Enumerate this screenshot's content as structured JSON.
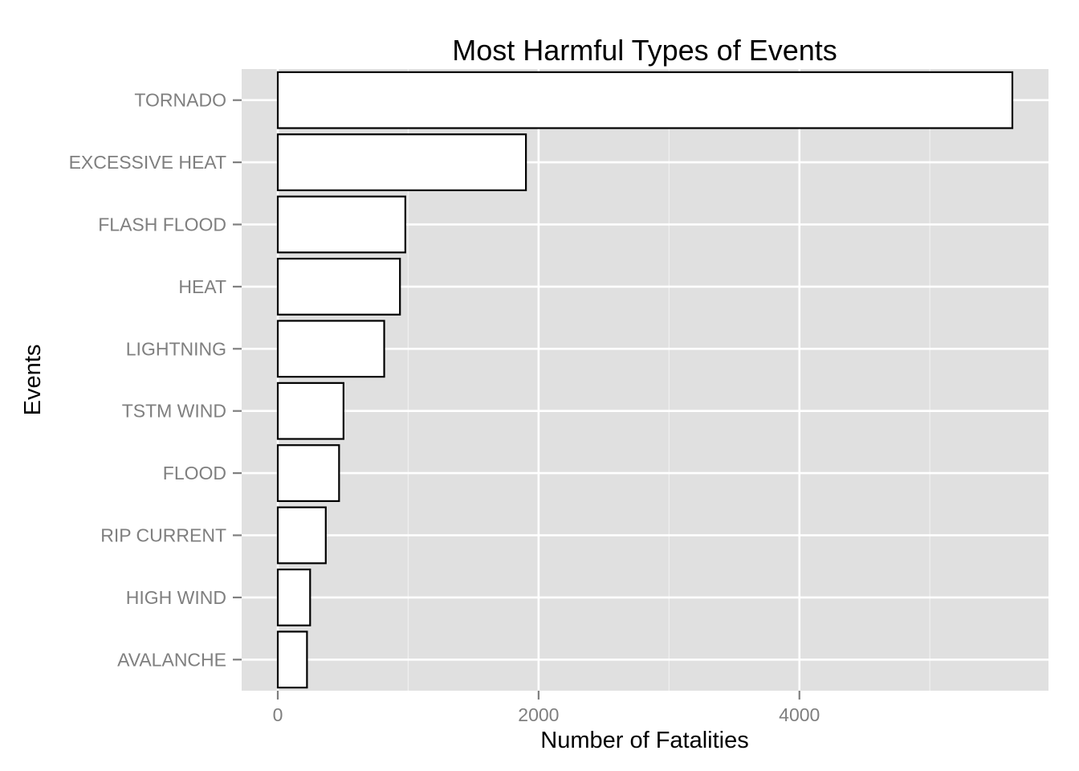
{
  "chart_data": {
    "type": "bar",
    "orientation": "horizontal",
    "title": "Most Harmful Types of Events",
    "xlabel": "Number of Fatalities",
    "ylabel": "Events",
    "categories": [
      "TORNADO",
      "EXCESSIVE HEAT",
      "FLASH FLOOD",
      "HEAT",
      "LIGHTNING",
      "TSTM WIND",
      "FLOOD",
      "RIP CURRENT",
      "HIGH WIND",
      "AVALANCHE"
    ],
    "values": [
      5633,
      1903,
      978,
      937,
      816,
      504,
      470,
      368,
      248,
      224
    ],
    "x_ticks": [
      "0",
      "2000",
      "4000"
    ],
    "xlim": [
      -277,
      5910
    ],
    "grid": true,
    "legend": "none",
    "colors": {
      "panel_background": "#e0e0e0",
      "grid_major": "#ffffff",
      "grid_minor": "#efefef",
      "bar_fill": "#ffffff",
      "bar_outline": "#000000",
      "tick_text": "#7f7f7f"
    }
  }
}
